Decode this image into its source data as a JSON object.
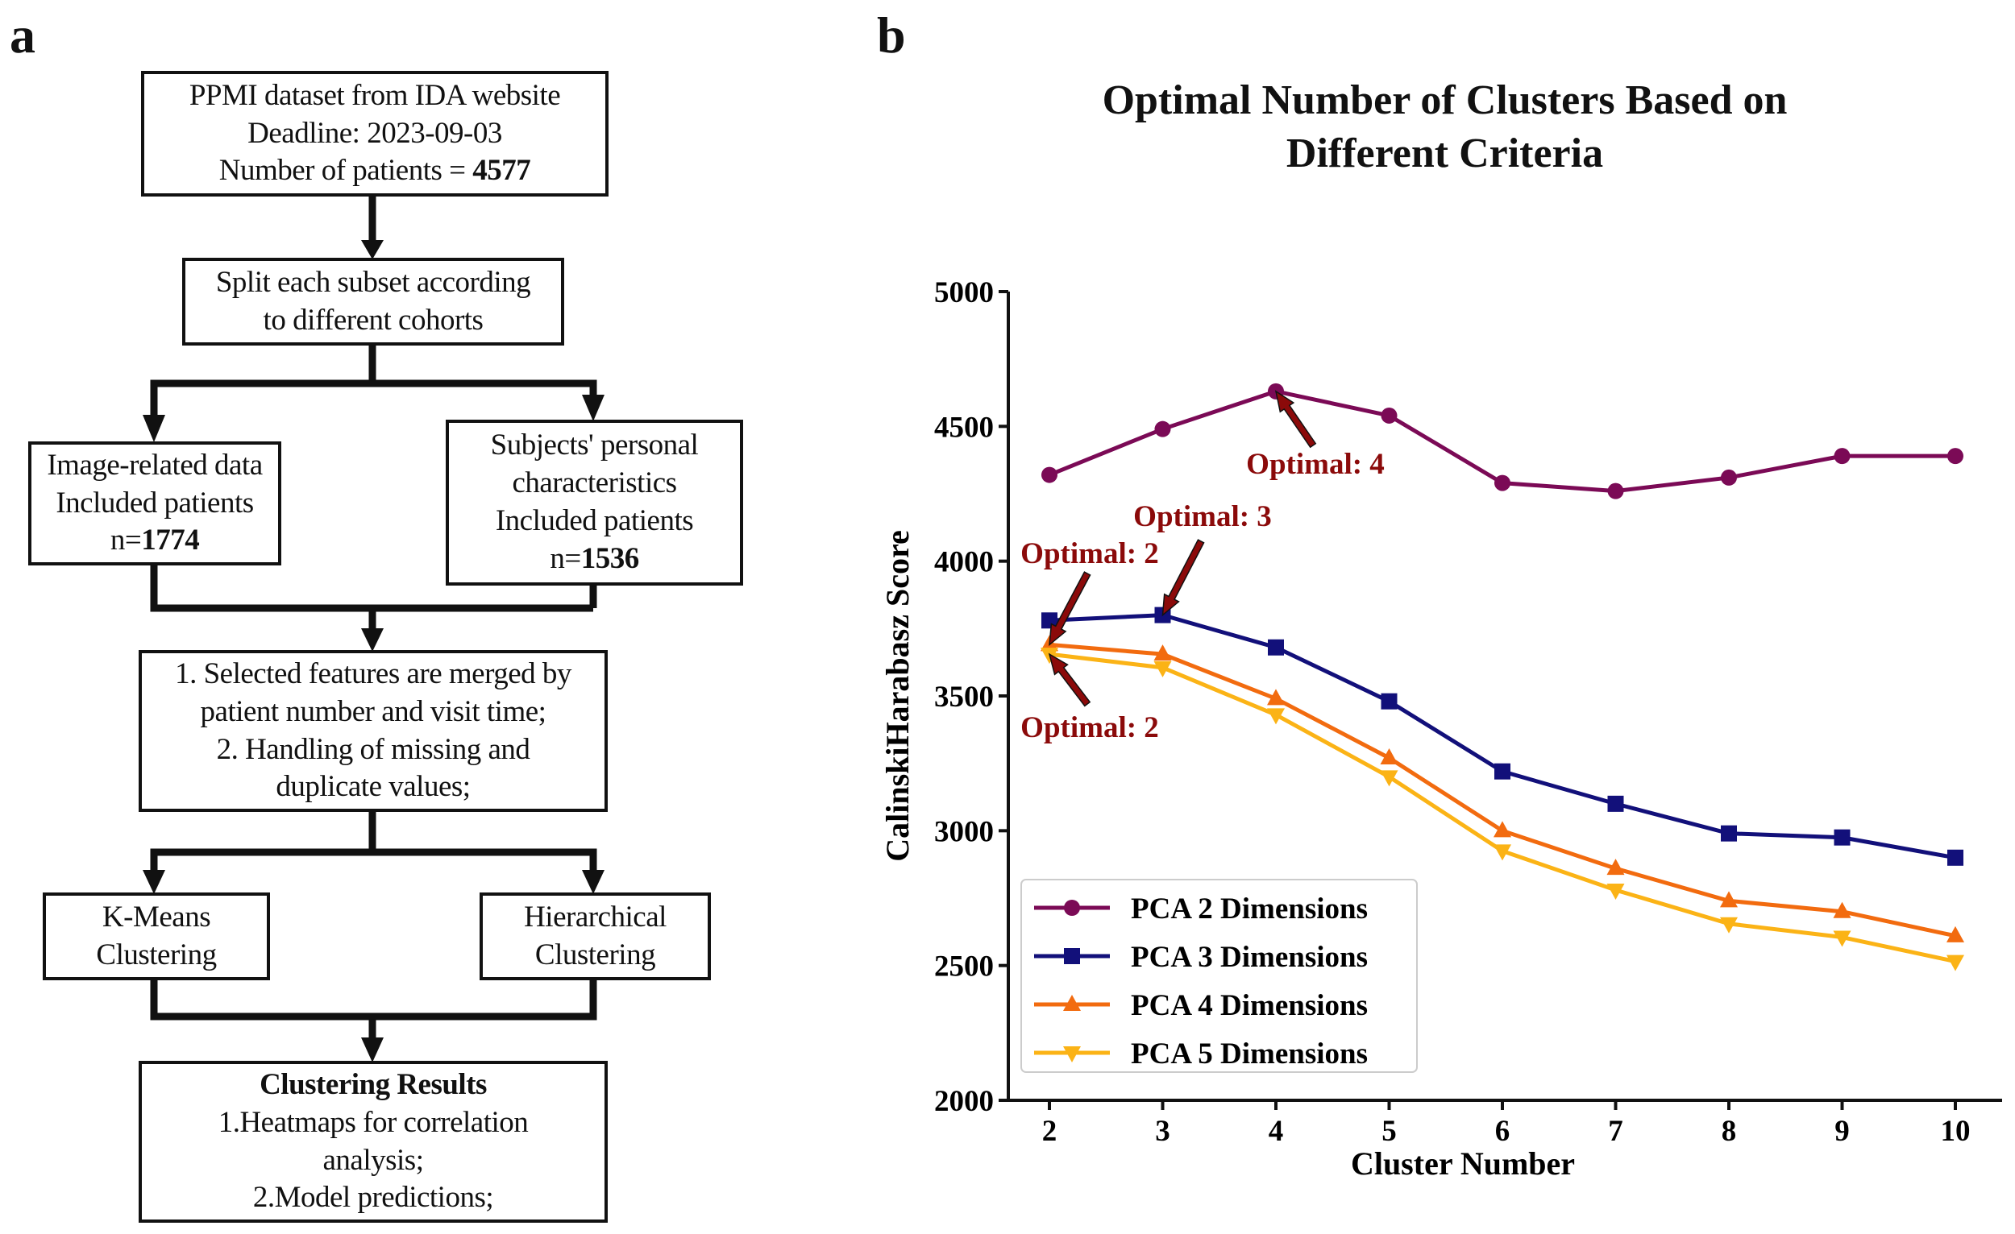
{
  "panel_a": {
    "letter": "a",
    "box1": {
      "line1": "PPMI dataset from IDA website",
      "line2": "Deadline: 2023-09-03",
      "line3_prefix": "Number of patients = ",
      "line3_value": "4577"
    },
    "box2": {
      "line1": "Split each subset according",
      "line2": "to different cohorts"
    },
    "box3": {
      "line1": "Image-related data",
      "line2": "Included patients",
      "line3_prefix": "n=",
      "line3_value": "1774"
    },
    "box4": {
      "line1": "Subjects' personal",
      "line2": "characteristics",
      "line3": "Included patients",
      "line4_prefix": "n=",
      "line4_value": "1536"
    },
    "box5": {
      "line1": "1. Selected features are merged by",
      "line2": "patient number and visit time;",
      "line3": "2. Handling of missing and",
      "line4": "duplicate values;"
    },
    "box6": {
      "line1": "K-Means",
      "line2": "Clustering"
    },
    "box7": {
      "line1": "Hierarchical",
      "line2": "Clustering"
    },
    "box8": {
      "title": "Clustering Results",
      "line1": "1.Heatmaps for correlation",
      "line2": "analysis;",
      "line3": "2.Model predictions;"
    }
  },
  "panel_b": {
    "letter": "b"
  },
  "chart_data": {
    "type": "line",
    "title_line1": "Optimal Number of Clusters Based on",
    "title_line2": "Different Criteria",
    "xlabel": "Cluster Number",
    "ylabel": "CalinskiHarabasz Score",
    "x": [
      2,
      3,
      4,
      5,
      6,
      7,
      8,
      9,
      10
    ],
    "xlim": [
      2,
      10
    ],
    "ylim": [
      2000,
      5000
    ],
    "yticks": [
      2000,
      2500,
      3000,
      3500,
      4000,
      4500,
      5000
    ],
    "grid": false,
    "legend_position": "bottom-left",
    "series": [
      {
        "name": "PCA 2 Dimensions",
        "color": "#7b0a56",
        "marker": "circle",
        "values": [
          4320,
          4490,
          4630,
          4540,
          4290,
          4260,
          4310,
          4390,
          4390
        ]
      },
      {
        "name": "PCA 3 Dimensions",
        "color": "#12107a",
        "marker": "square",
        "values": [
          3780,
          3800,
          3680,
          3480,
          3220,
          3100,
          2990,
          2975,
          2900
        ]
      },
      {
        "name": "PCA 4 Dimensions",
        "color": "#f26b0f",
        "marker": "triangle-up",
        "values": [
          3690,
          3655,
          3490,
          3270,
          3000,
          2860,
          2740,
          2700,
          2610
        ]
      },
      {
        "name": "PCA 5 Dimensions",
        "color": "#fbb316",
        "marker": "triangle-down",
        "values": [
          3655,
          3605,
          3430,
          3200,
          2925,
          2780,
          2655,
          2605,
          2515
        ]
      }
    ],
    "annotations": [
      {
        "text": "Optimal: 4",
        "x": 4,
        "y": 4630,
        "color": "#8b0a0a"
      },
      {
        "text": "Optimal: 3",
        "x": 3,
        "y": 3800,
        "color": "#8b0a0a"
      },
      {
        "text": "Optimal: 2",
        "x": 2,
        "y": 3690,
        "color": "#8b0a0a"
      },
      {
        "text": "Optimal: 2",
        "x": 2,
        "y": 3655,
        "color": "#8b0a0a"
      }
    ]
  }
}
